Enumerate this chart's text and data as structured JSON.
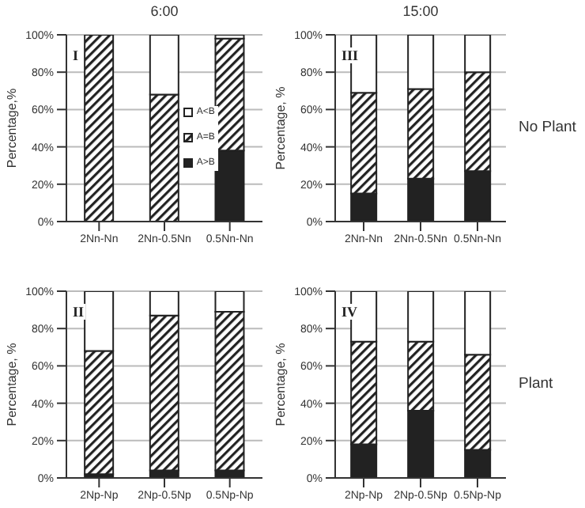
{
  "chart_data": [
    {
      "type": "bar",
      "title": "6:00",
      "ylabel": "Percentage,%",
      "categories": [
        "2Nn-Nn",
        "2Nn-0.5Nn",
        "0.5Nn-Nn"
      ],
      "stacked": true,
      "ylim": [
        0,
        100
      ],
      "yticks": [
        {
          "value": 0,
          "label": "0%"
        },
        {
          "value": 20,
          "label": "20%"
        },
        {
          "value": 40,
          "label": "40%"
        },
        {
          "value": 60,
          "label": "60%"
        },
        {
          "value": 80,
          "label": "80%"
        },
        {
          "value": 100,
          "label": "100%"
        }
      ],
      "grid": "y",
      "legend": "right",
      "annotations": [
        "I"
      ],
      "series": [
        {
          "name": "A>B",
          "color": "#222222",
          "values": [
            0,
            0,
            38
          ]
        },
        {
          "name": "A=B",
          "color": "#222222",
          "values": [
            100,
            68,
            60
          ]
        },
        {
          "name": "A<B",
          "color": "#ffffff",
          "values": [
            0,
            32,
            2
          ]
        }
      ]
    },
    {
      "type": "bar",
      "title": "15:00",
      "ylabel": "Percentage, %",
      "categories": [
        "2Nn-Nn",
        "2Nn-0.5Nn",
        "0.5Nn-Nn"
      ],
      "stacked": true,
      "ylim": [
        0,
        100
      ],
      "yticks": [
        {
          "value": 0,
          "label": "0%"
        },
        {
          "value": 20,
          "label": "20%"
        },
        {
          "value": 40,
          "label": "40%"
        },
        {
          "value": 60,
          "label": "60%"
        },
        {
          "value": 80,
          "label": "80%"
        },
        {
          "value": 100,
          "label": "100%"
        }
      ],
      "grid": "y",
      "annotations": [
        "III",
        "No Plant"
      ],
      "series": [
        {
          "color": "#222222",
          "values": [
            15,
            23,
            27
          ]
        },
        {
          "color": "#222222",
          "values": [
            54,
            48,
            53
          ]
        },
        {
          "color": "#ffffff",
          "values": [
            31,
            29,
            20
          ]
        }
      ]
    },
    {
      "type": "bar",
      "ylabel": "Percentage, %",
      "categories": [
        "2Np-Np",
        "2Np-0.5Np",
        "0.5Np-Np"
      ],
      "stacked": true,
      "ylim": [
        0,
        100
      ],
      "yticks": [
        {
          "value": 0,
          "label": "0%"
        },
        {
          "value": 20,
          "label": "20%"
        },
        {
          "value": 40,
          "label": "40%"
        },
        {
          "value": 60,
          "label": "60%"
        },
        {
          "value": 80,
          "label": "80%"
        },
        {
          "value": 100,
          "label": "100%"
        }
      ],
      "grid": "y",
      "annotations": [
        "II"
      ],
      "series": [
        {
          "color": "#222222",
          "values": [
            2,
            4,
            4
          ]
        },
        {
          "color": "#222222",
          "values": [
            66,
            83,
            85
          ]
        },
        {
          "color": "#ffffff",
          "values": [
            32,
            13,
            11
          ]
        }
      ]
    },
    {
      "type": "bar",
      "ylabel": "Percentage, %",
      "categories": [
        "2Np-Np",
        "2Np-0.5Np",
        "0.5Np-Np"
      ],
      "stacked": true,
      "ylim": [
        0,
        100
      ],
      "yticks": [
        {
          "value": 0,
          "label": "0%"
        },
        {
          "value": 20,
          "label": "20%"
        },
        {
          "value": 40,
          "label": "40%"
        },
        {
          "value": 60,
          "label": "60%"
        },
        {
          "value": 80,
          "label": "80%"
        },
        {
          "value": 100,
          "label": "100%"
        }
      ],
      "grid": "y",
      "annotations": [
        "IV",
        "Plant"
      ],
      "series": [
        {
          "color": "#222222",
          "values": [
            18,
            36,
            15
          ]
        },
        {
          "color": "#222222",
          "values": [
            55,
            37,
            51
          ]
        },
        {
          "color": "#ffffff",
          "values": [
            27,
            27,
            34
          ]
        }
      ]
    }
  ]
}
